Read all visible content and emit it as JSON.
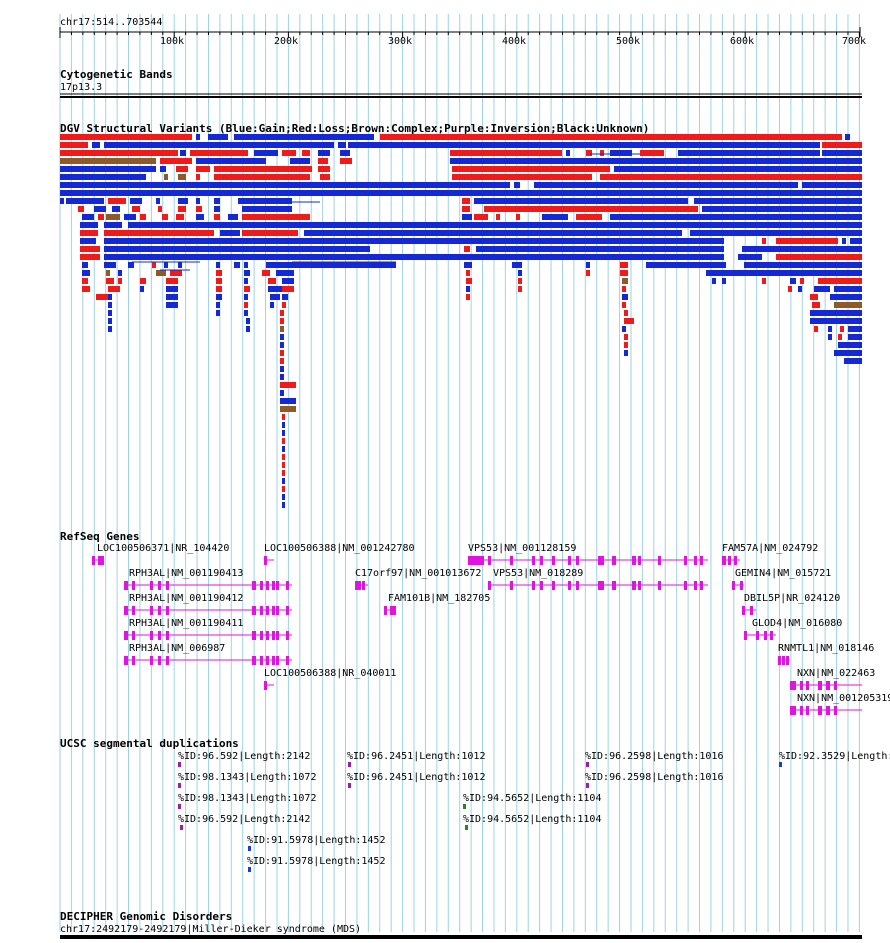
{
  "header": {
    "position_label": "chr17:514..703544",
    "ticks": [
      "100k",
      "200k",
      "300k",
      "400k",
      "500k",
      "600k",
      "700k"
    ]
  },
  "colors": {
    "gain": "#1429d4",
    "loss": "#ef1b1b",
    "complex": "#8f5a2a",
    "gene": "#e014e0",
    "sd_purple": "#9b1fa6",
    "sd_green": "#1f8a1f",
    "sd_blue": "#1a3cd9",
    "grid": "#9ed2e6"
  },
  "tracks": {
    "cytoband": {
      "title": "Cytogenetic Bands",
      "band": "17p13.3"
    },
    "dgv": {
      "title": "DGV Structural Variants (Blue:Gain;Red:Loss;Brown:Complex;Purple:Inversion;Black:Unknown)"
    },
    "refseq": {
      "title": "RefSeq Genes",
      "labels": [
        "LOC100506371|NR_104420",
        "LOC100506388|NM_001242780",
        "VPS53|NM_001128159",
        "FAM57A|NM_024792",
        "RPH3AL|NM_001190413",
        "C17orf97|NM_001013672",
        "VPS53|NM_018289",
        "GEMIN4|NM_015721",
        "RPH3AL|NM_001190412",
        "FAM101B|NM_182705",
        "DBIL5P|NR_024120",
        "RPH3AL|NM_001190411",
        "GLOD4|NM_016080",
        "RPH3AL|NM_006987",
        "RNMTL1|NM_018146",
        "NXN|NM_022463",
        "LOC100506388|NR_040011",
        "NXN|NM_001205319"
      ]
    },
    "segdup": {
      "title": "UCSC segmental duplications",
      "labels": [
        "%ID:96.592|Length:2142",
        "%ID:96.2451|Length:1012",
        "%ID:96.2598|Length:1016",
        "%ID:92.3529|Length:",
        "%ID:98.1343|Length:1072",
        "%ID:96.2451|Length:1012",
        "%ID:96.2598|Length:1016",
        "%ID:98.1343|Length:1072",
        "%ID:94.5652|Length:1104",
        "%ID:96.592|Length:2142",
        "%ID:94.5652|Length:1104",
        "%ID:91.5978|Length:1452",
        "%ID:91.5978|Length:1452"
      ]
    },
    "decipher": {
      "title": "DECIPHER Genomic Disorders",
      "entry": "chr17:2492179-2492179|Miller-Dieker syndrome (MDS)"
    }
  }
}
